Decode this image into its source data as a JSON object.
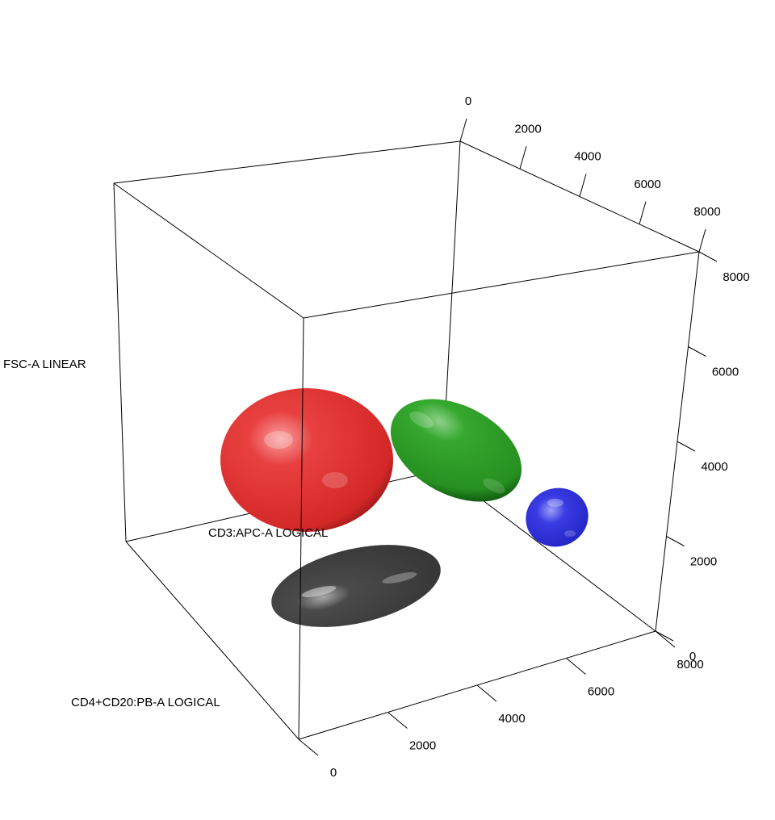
{
  "chart_data": {
    "type": "scatter3d",
    "axes": {
      "x": {
        "label": "CD3:APC-A LOGICAL",
        "range": [
          0,
          8000
        ],
        "ticks": [
          0,
          2000,
          4000,
          6000,
          8000
        ],
        "tick_labels": [
          "0",
          "2000",
          "4000",
          "6000",
          "8000"
        ]
      },
      "y": {
        "label": "CD4+CD20:PB-A LOGICAL",
        "range": [
          0,
          8000
        ],
        "ticks": [
          0,
          2000,
          4000,
          6000,
          8000
        ],
        "tick_labels": [
          "0",
          "2000",
          "4000",
          "6000",
          "8000"
        ]
      },
      "z": {
        "label": "FSC-A LINEAR",
        "range": [
          0,
          8000
        ],
        "ticks": [
          0,
          2000,
          4000,
          6000,
          8000
        ],
        "tick_labels": [
          "0",
          "2000",
          "4000",
          "6000",
          "8000"
        ]
      }
    },
    "series": [
      {
        "color": "#e8322f",
        "center": {
          "x": 1500,
          "y": 3200,
          "z": 4300
        }
      },
      {
        "color": "#2c9a25",
        "center": {
          "x": 3900,
          "y": 2000,
          "z": 4500
        }
      },
      {
        "color": "#2d2fd6",
        "center": {
          "x": 6000,
          "y": 500,
          "z": 3600
        }
      },
      {
        "color": "#3a3a3a",
        "center": {
          "x": 3800,
          "y": 3600,
          "z": 800
        }
      }
    ],
    "grid": false,
    "legend": "none"
  }
}
